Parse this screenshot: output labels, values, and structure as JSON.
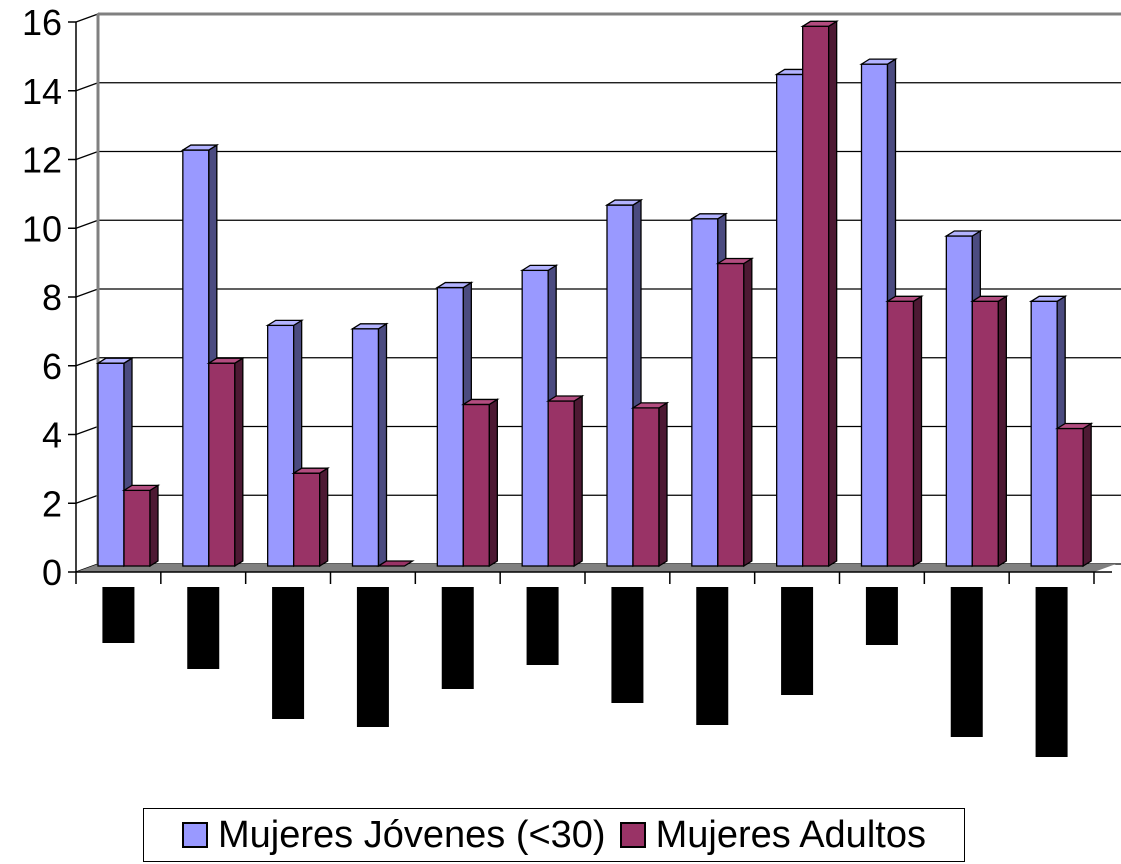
{
  "colors": {
    "series1": "#9999ff",
    "series1_side": "#4b4b80",
    "series1_top": "#b3b3ff",
    "series2": "#993366",
    "series2_side": "#4d1933",
    "series2_top": "#b34d80",
    "floor": "#808080",
    "redacted_label": "#000000"
  },
  "legend": {
    "item1": "Mujeres Jóvenes (<30)",
    "item2": "Mujeres Adultos"
  },
  "chart_data": {
    "type": "bar",
    "variant": "3d-clustered-column",
    "categories": [
      "",
      "",
      "",
      "",
      "",
      "",
      "",
      "",
      "",
      "",
      "",
      ""
    ],
    "categories_redacted": true,
    "category_label_lengths": [
      0.28,
      0.41,
      0.66,
      0.7,
      0.51,
      0.39,
      0.58,
      0.69,
      0.54,
      0.29,
      0.75,
      0.85
    ],
    "series": [
      {
        "name": "Mujeres Jóvenes (<30)",
        "values": [
          5.9,
          12.1,
          7.0,
          6.9,
          8.1,
          8.6,
          10.5,
          10.1,
          14.3,
          14.6,
          9.6,
          7.7
        ]
      },
      {
        "name": "Mujeres Adultos",
        "values": [
          2.2,
          5.9,
          2.7,
          0.0,
          4.7,
          4.8,
          4.6,
          8.8,
          15.7,
          7.7,
          7.7,
          4.0
        ]
      }
    ],
    "y_ticks": [
      "0",
      "2",
      "4",
      "6",
      "8",
      "10",
      "12",
      "14",
      "16"
    ],
    "ylim": [
      0,
      16
    ],
    "grid": true,
    "legend_position": "bottom"
  }
}
